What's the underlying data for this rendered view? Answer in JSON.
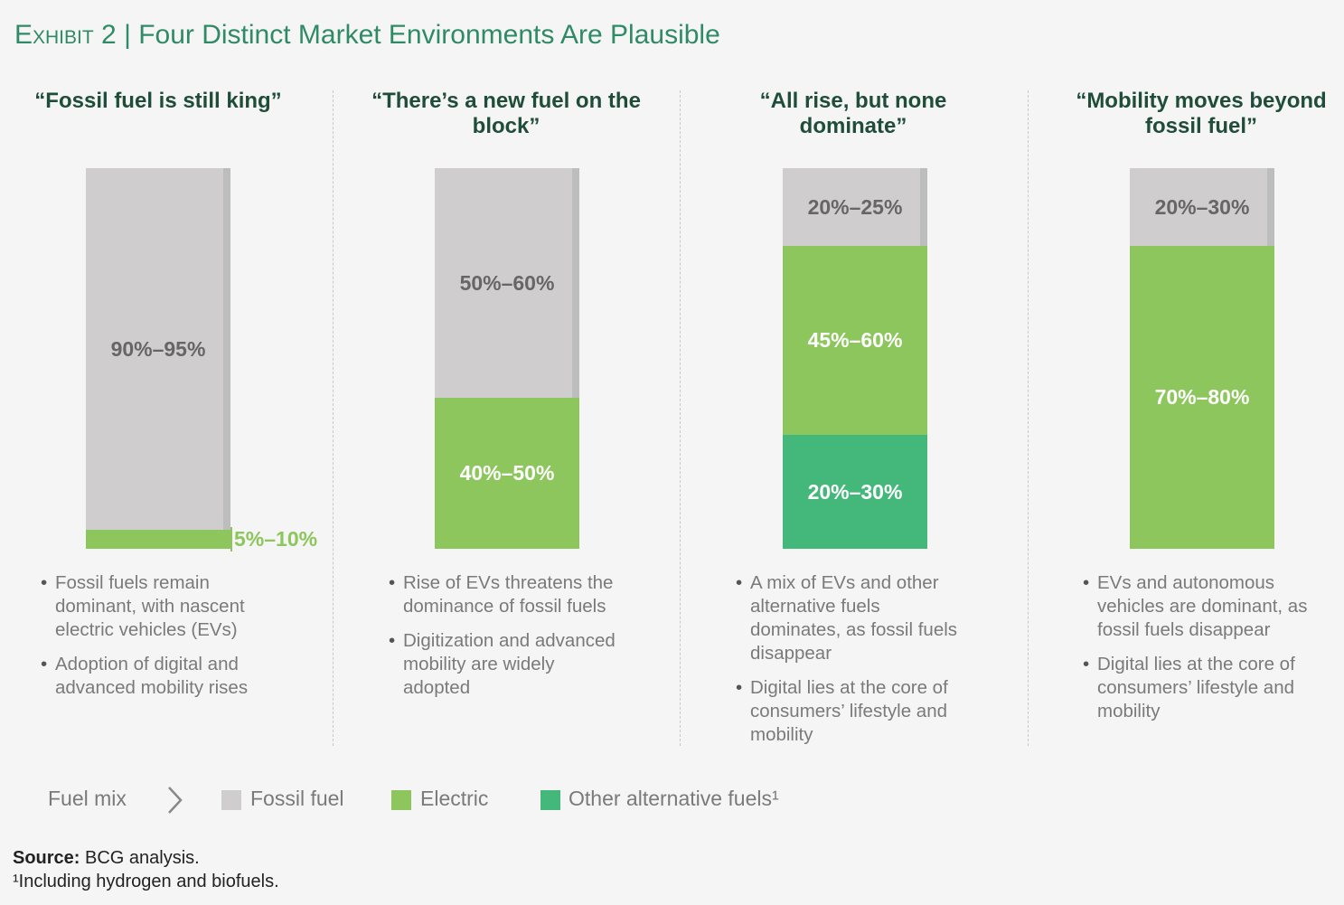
{
  "title": {
    "exhibit": "Exhibit 2",
    "separator": "|",
    "text": "Four Distinct Market Environments Are Plausible"
  },
  "scenarios": [
    {
      "heading": "“Fossil fuel is still king”",
      "segments": [
        {
          "label": "90%–95%",
          "color": "#cfcdcd"
        },
        {
          "label": "5%–10%",
          "color": "#8cc65c"
        }
      ],
      "bullets": [
        "Fossil fuels remain dominant, with nascent electric vehicles (EVs)",
        "Adoption of digital and advanced mobility rises"
      ]
    },
    {
      "heading": "“There’s a new fuel on the block”",
      "segments": [
        {
          "label": "50%–60%",
          "color": "#cfcdcd"
        },
        {
          "label": "40%–50%",
          "color": "#8cc65c"
        }
      ],
      "bullets": [
        "Rise of EVs threatens the dominance of fossil fuels",
        "Digitization and advanced mobility are widely adopted"
      ]
    },
    {
      "heading": "“All rise, but none dominate”",
      "segments": [
        {
          "label": "20%–25%",
          "color": "#cfcdcd"
        },
        {
          "label": "45%–60%",
          "color": "#8cc65c"
        },
        {
          "label": "20%–30%",
          "color": "#44b87a"
        }
      ],
      "bullets": [
        "A mix of EVs and other alternative fuels dominates, as fossil fuels disappear",
        "Digital lies at the core of consumers’ lifestyle and mobility"
      ]
    },
    {
      "heading": "“Mobility moves beyond fossil fuel”",
      "segments": [
        {
          "label": "20%–30%",
          "color": "#cfcdcd"
        },
        {
          "label": "70%–80%",
          "color": "#8cc65c"
        }
      ],
      "bullets": [
        "EVs and autonomous vehicles are dominant, as fossil fuels disappear",
        "Digital lies at the core of consumers’ lifestyle and mobility"
      ]
    }
  ],
  "legend": {
    "title": "Fuel mix",
    "items": [
      {
        "name": "Fossil fuel",
        "color": "#cfcdcd"
      },
      {
        "name": "Electric",
        "color": "#8cc65c"
      },
      {
        "name": "Other alternative fuels¹",
        "color": "#44b87a"
      }
    ]
  },
  "source": {
    "label": "Source:",
    "text": " BCG analysis."
  },
  "footnote": "¹Including hydrogen and biofuels."
}
